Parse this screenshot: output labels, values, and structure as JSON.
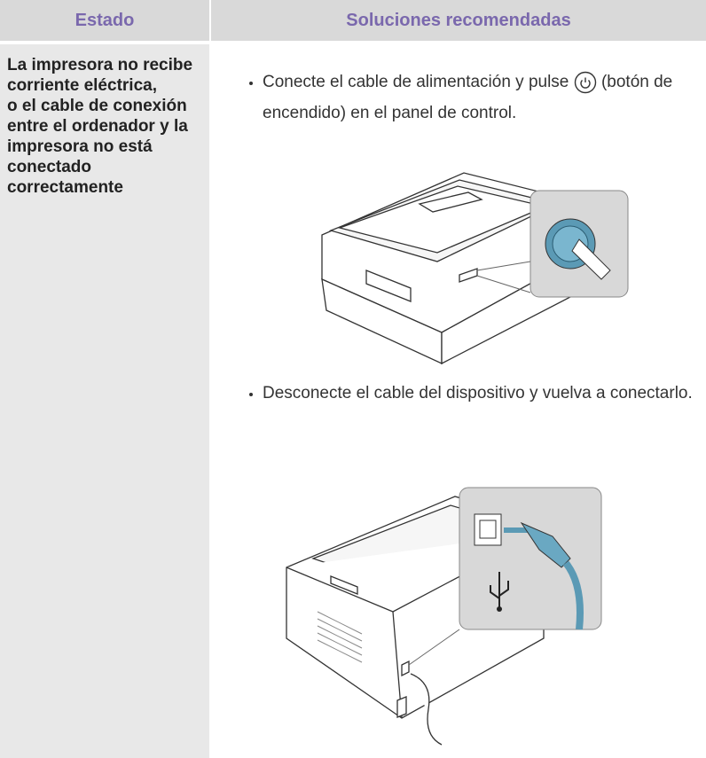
{
  "table": {
    "headers": [
      "Estado",
      "Soluciones recomendadas"
    ],
    "rows": [
      {
        "status": [
          "La impresora no recibe corriente eléctrica,",
          "o el cable de conexión entre el ordenador y la impresora no está conectado correctamente"
        ],
        "solutions": [
          {
            "text_before": "Conecte el cable de alimentación y pulse",
            "text_after": "(botón de encendido) en el panel de control."
          },
          {
            "text": "Desconecte el cable del dispositivo y vuelva a conectarlo."
          }
        ]
      }
    ]
  }
}
